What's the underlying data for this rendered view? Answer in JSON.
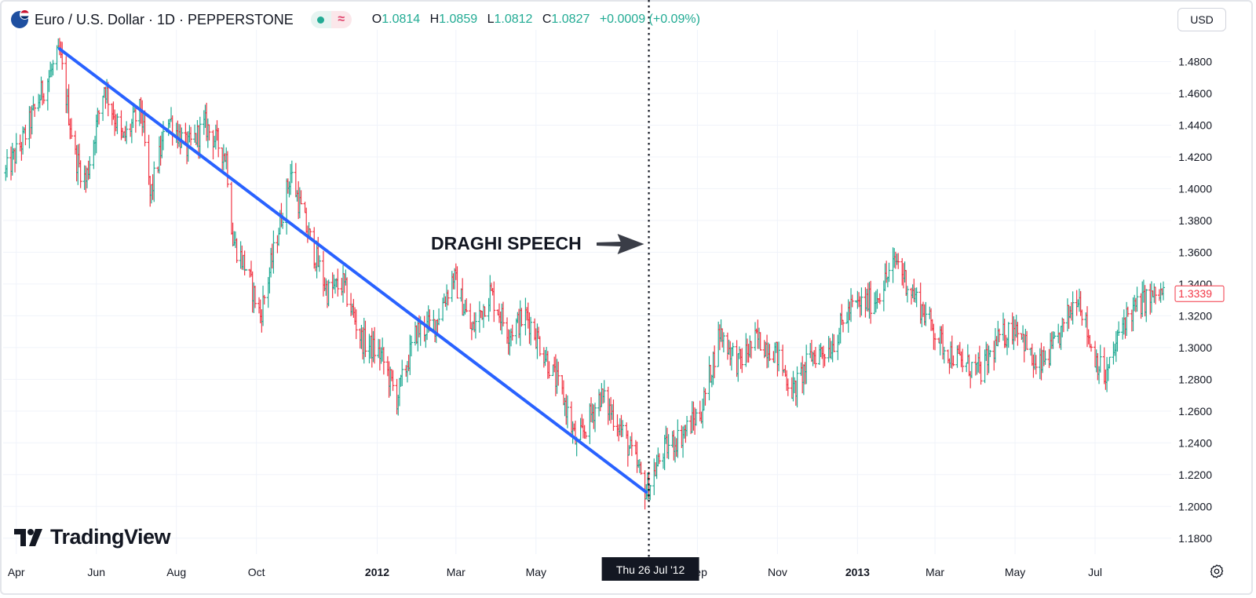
{
  "header": {
    "symbol_title": "Euro / U.S. Dollar · 1D · PEPPERSTONE",
    "ohlc": [
      {
        "key": "O",
        "value": "1.0814"
      },
      {
        "key": "H",
        "value": "1.0859"
      },
      {
        "key": "L",
        "value": "1.0812"
      },
      {
        "key": "C",
        "value": "1.0827"
      }
    ],
    "change": "+0.0009 (+0.09%)",
    "currency_button": "USD"
  },
  "brand": {
    "logo_text": "TradingView"
  },
  "annotation": {
    "text": "DRAGHI SPEECH",
    "date": "Thu 26 Jul '12"
  },
  "colors": {
    "up": "#22ab94",
    "down": "#f23645",
    "trendline": "#2962ff",
    "price_tag": "#f23645"
  },
  "chart_data": {
    "type": "line",
    "subtype": "ohlc-bars",
    "instrument": "EUR/USD",
    "xlim": [
      "2011-03-22",
      "2013-08-28"
    ],
    "ylim": [
      1.17,
      1.5
    ],
    "y_ticks": [
      "1.4800",
      "1.4600",
      "1.4400",
      "1.4200",
      "1.4000",
      "1.3800",
      "1.3600",
      "1.3400",
      "1.3200",
      "1.3000",
      "1.2800",
      "1.2600",
      "1.2400",
      "1.2200",
      "1.2000",
      "1.1800"
    ],
    "x_ticks": [
      {
        "date": "2011-04-01",
        "label": "Apr"
      },
      {
        "date": "2011-06-01",
        "label": "Jun"
      },
      {
        "date": "2011-08-01",
        "label": "Aug"
      },
      {
        "date": "2011-10-01",
        "label": "Oct"
      },
      {
        "date": "2012-01-01",
        "label": "2012",
        "bold": true
      },
      {
        "date": "2012-03-01",
        "label": "Mar"
      },
      {
        "date": "2012-05-01",
        "label": "May"
      },
      {
        "date": "2012-09-01",
        "label": "Sep"
      },
      {
        "date": "2012-11-01",
        "label": "Nov"
      },
      {
        "date": "2013-01-01",
        "label": "2013",
        "bold": true
      },
      {
        "date": "2013-03-01",
        "label": "Mar"
      },
      {
        "date": "2013-05-01",
        "label": "May"
      },
      {
        "date": "2013-07-01",
        "label": "Jul"
      }
    ],
    "last_price": "1.3339",
    "grid": true,
    "marker_date": "2012-07-26",
    "trendline": [
      {
        "date": "2011-05-04",
        "value": 1.488
      },
      {
        "date": "2012-07-24",
        "value": 1.209
      }
    ],
    "series": [
      {
        "points": [
          [
            "2011-03-24",
            1.41
          ],
          [
            "2011-04-06",
            1.43
          ],
          [
            "2011-04-20",
            1.46
          ],
          [
            "2011-05-04",
            1.485
          ],
          [
            "2011-05-16",
            1.42
          ],
          [
            "2011-05-24",
            1.405
          ],
          [
            "2011-06-07",
            1.465
          ],
          [
            "2011-06-21",
            1.43
          ],
          [
            "2011-07-05",
            1.45
          ],
          [
            "2011-07-12",
            1.395
          ],
          [
            "2011-07-26",
            1.445
          ],
          [
            "2011-08-09",
            1.425
          ],
          [
            "2011-08-23",
            1.44
          ],
          [
            "2011-09-08",
            1.42
          ],
          [
            "2011-09-13",
            1.368
          ],
          [
            "2011-09-23",
            1.35
          ],
          [
            "2011-10-04",
            1.32
          ],
          [
            "2011-10-18",
            1.375
          ],
          [
            "2011-10-27",
            1.41
          ],
          [
            "2011-11-08",
            1.375
          ],
          [
            "2011-11-24",
            1.335
          ],
          [
            "2011-12-06",
            1.34
          ],
          [
            "2011-12-20",
            1.305
          ],
          [
            "2012-01-04",
            1.295
          ],
          [
            "2012-01-16",
            1.268
          ],
          [
            "2012-01-31",
            1.31
          ],
          [
            "2012-02-14",
            1.315
          ],
          [
            "2012-02-28",
            1.345
          ],
          [
            "2012-03-13",
            1.31
          ],
          [
            "2012-03-27",
            1.335
          ],
          [
            "2012-04-10",
            1.31
          ],
          [
            "2012-04-24",
            1.32
          ],
          [
            "2012-05-08",
            1.295
          ],
          [
            "2012-05-22",
            1.268
          ],
          [
            "2012-06-01",
            1.238
          ],
          [
            "2012-06-19",
            1.27
          ],
          [
            "2012-07-03",
            1.252
          ],
          [
            "2012-07-17",
            1.225
          ],
          [
            "2012-07-24",
            1.209
          ],
          [
            "2012-08-06",
            1.235
          ],
          [
            "2012-08-20",
            1.245
          ],
          [
            "2012-09-04",
            1.26
          ],
          [
            "2012-09-18",
            1.31
          ],
          [
            "2012-10-02",
            1.29
          ],
          [
            "2012-10-16",
            1.305
          ],
          [
            "2012-10-30",
            1.298
          ],
          [
            "2012-11-13",
            1.272
          ],
          [
            "2012-11-27",
            1.295
          ],
          [
            "2012-12-11",
            1.3
          ],
          [
            "2012-12-27",
            1.325
          ],
          [
            "2013-01-14",
            1.33
          ],
          [
            "2013-01-31",
            1.355
          ],
          [
            "2013-02-08",
            1.34
          ],
          [
            "2013-02-22",
            1.32
          ],
          [
            "2013-03-08",
            1.3
          ],
          [
            "2013-03-22",
            1.29
          ],
          [
            "2013-04-05",
            1.285
          ],
          [
            "2013-04-19",
            1.305
          ],
          [
            "2013-05-03",
            1.315
          ],
          [
            "2013-05-17",
            1.285
          ],
          [
            "2013-05-31",
            1.3
          ],
          [
            "2013-06-18",
            1.335
          ],
          [
            "2013-06-28",
            1.3
          ],
          [
            "2013-07-09",
            1.28
          ],
          [
            "2013-07-23",
            1.318
          ],
          [
            "2013-08-08",
            1.33
          ],
          [
            "2013-08-22",
            1.334
          ]
        ]
      }
    ]
  }
}
